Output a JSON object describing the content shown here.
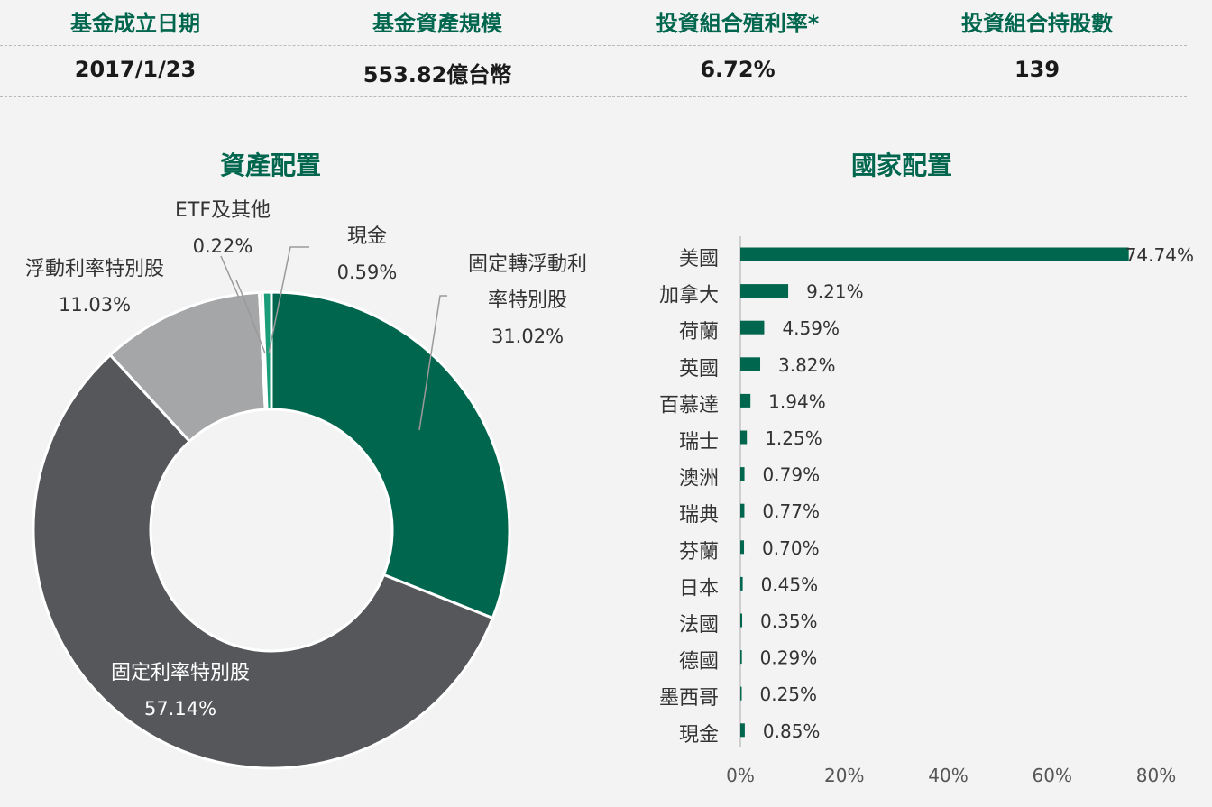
{
  "stats": {
    "inception_label": "基金成立日期",
    "inception_value": "2017/1/23",
    "aum_label": "基金資產規模",
    "aum_value": "553.82億台幣",
    "yield_label": "投資組合殖利率*",
    "yield_value": "6.72%",
    "holdings_label": "投資組合持股數",
    "holdings_value": "139"
  },
  "chart_data": [
    {
      "type": "pie",
      "title": "資產配置",
      "slices": [
        {
          "label": "固定轉浮動利率特別股",
          "label_lines": [
            "固定轉浮動利",
            "率特別股"
          ],
          "value": 31.02,
          "display": "31.02%",
          "color": "#00664d"
        },
        {
          "label": "固定利率特別股",
          "label_lines": [
            "固定利率特別股"
          ],
          "value": 57.14,
          "display": "57.14%",
          "color": "#56575a"
        },
        {
          "label": "浮動利率特別股",
          "label_lines": [
            "浮動利率特別股"
          ],
          "value": 11.03,
          "display": "11.03%",
          "color": "#a5a6a8"
        },
        {
          "label": "ETF及其他",
          "label_lines": [
            "ETF及其他"
          ],
          "value": 0.22,
          "display": "0.22%",
          "color": "#d6d6d6"
        },
        {
          "label": "現金",
          "label_lines": [
            "現金"
          ],
          "value": 0.59,
          "display": "0.59%",
          "color": "#1a9e7a"
        }
      ]
    },
    {
      "type": "bar",
      "orientation": "horizontal",
      "title": "國家配置",
      "categories": [
        "美國",
        "加拿大",
        "荷蘭",
        "英國",
        "百慕達",
        "瑞士",
        "澳洲",
        "瑞典",
        "芬蘭",
        "日本",
        "法國",
        "德國",
        "墨西哥",
        "現金"
      ],
      "values": [
        74.74,
        9.21,
        4.59,
        3.82,
        1.94,
        1.25,
        0.79,
        0.77,
        0.7,
        0.45,
        0.35,
        0.29,
        0.25,
        0.85
      ],
      "value_labels": [
        "74.74%",
        "9.21%",
        "4.59%",
        "3.82%",
        "1.94%",
        "1.25%",
        "0.79%",
        "0.77%",
        "0.70%",
        "0.45%",
        "0.35%",
        "0.29%",
        "0.25%",
        "0.85%"
      ],
      "xlim": [
        0,
        80
      ],
      "xticks": [
        "0%",
        "20%",
        "40%",
        "60%",
        "80%"
      ],
      "bar_color": "#00664d"
    }
  ]
}
